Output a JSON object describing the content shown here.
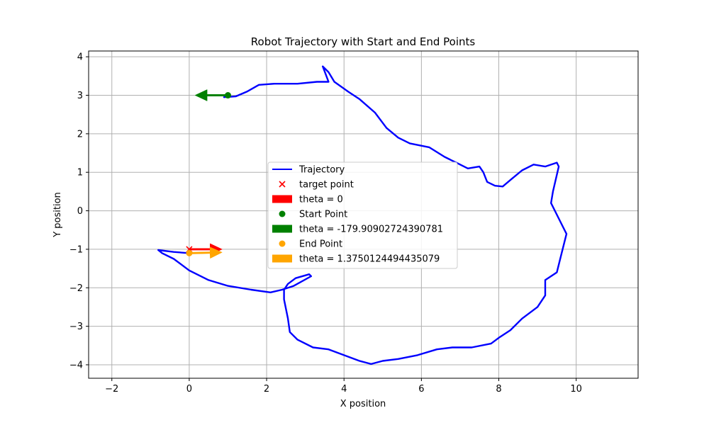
{
  "chart_data": {
    "type": "line",
    "title": "Robot Trajectory with Start and End Points",
    "xlabel": "X position",
    "ylabel": "Y position",
    "xlim": [
      -2.6,
      11.6
    ],
    "ylim": [
      -4.35,
      4.15
    ],
    "xticks": [
      -2,
      0,
      2,
      4,
      6,
      8,
      10
    ],
    "yticks": [
      -4,
      -3,
      -2,
      -1,
      0,
      1,
      2,
      3,
      4
    ],
    "xtick_labels": [
      "−2",
      "0",
      "2",
      "4",
      "6",
      "8",
      "10"
    ],
    "ytick_labels": [
      "−4",
      "−3",
      "−2",
      "−1",
      "0",
      "1",
      "2",
      "3",
      "4"
    ],
    "grid": true,
    "legend_position": "center",
    "colors": {
      "trajectory": "#0000ff",
      "target": "#ff0000",
      "target_arrow": "#ff0000",
      "start": "#008000",
      "start_arrow": "#008000",
      "end": "#ffa500",
      "end_arrow": "#ffa500",
      "grid": "#b0b0b0"
    },
    "series": [
      {
        "name": "Trajectory",
        "kind": "line",
        "x": [
          1.0,
          0.9,
          1.2,
          1.5,
          1.8,
          2.2,
          2.8,
          3.3,
          3.6,
          3.45,
          3.6,
          3.75,
          4.1,
          4.4,
          4.8,
          5.1,
          5.4,
          5.7,
          6.2,
          6.6,
          6.9,
          7.2,
          7.5,
          7.6,
          7.7,
          7.9,
          8.1,
          8.3,
          8.6,
          8.9,
          9.2,
          9.5,
          9.55,
          9.4,
          9.35,
          9.6,
          9.75,
          9.6,
          9.5,
          9.2,
          9.2,
          9.0,
          8.6,
          8.3,
          8.0,
          7.8,
          7.3,
          6.8,
          6.4,
          5.9,
          5.4,
          5.0,
          4.7,
          4.4,
          4.0,
          3.6,
          3.2,
          2.8,
          2.6,
          2.55,
          2.45,
          2.45,
          2.55,
          2.75,
          3.1,
          3.15,
          2.7,
          2.4,
          2.1,
          1.6,
          1.0,
          0.5,
          0.0,
          -0.4,
          -0.7,
          -0.8,
          -0.4,
          0.0
        ],
        "y": [
          3.0,
          2.95,
          2.97,
          3.1,
          3.27,
          3.3,
          3.3,
          3.35,
          3.35,
          3.75,
          3.6,
          3.35,
          3.1,
          2.9,
          2.55,
          2.15,
          1.9,
          1.75,
          1.65,
          1.4,
          1.25,
          1.1,
          1.15,
          1.0,
          0.75,
          0.65,
          0.63,
          0.8,
          1.05,
          1.2,
          1.15,
          1.25,
          1.15,
          0.5,
          0.2,
          -0.3,
          -0.6,
          -1.2,
          -1.6,
          -1.8,
          -2.2,
          -2.5,
          -2.8,
          -3.1,
          -3.3,
          -3.45,
          -3.55,
          -3.55,
          -3.6,
          -3.75,
          -3.85,
          -3.9,
          -3.98,
          -3.9,
          -3.75,
          -3.6,
          -3.55,
          -3.35,
          -3.15,
          -2.8,
          -2.3,
          -2.05,
          -1.9,
          -1.75,
          -1.65,
          -1.7,
          -1.95,
          -2.05,
          -2.12,
          -2.05,
          -1.95,
          -1.8,
          -1.55,
          -1.25,
          -1.1,
          -1.02,
          -1.07,
          -1.1
        ]
      },
      {
        "name": "target point",
        "kind": "scatter",
        "marker": "x",
        "x": [
          0.0
        ],
        "y": [
          -1.0
        ]
      },
      {
        "name": "theta = 0",
        "kind": "arrow",
        "x": [
          0.0
        ],
        "y": [
          -1.0
        ],
        "dx": [
          0.85
        ],
        "dy": [
          0.0
        ]
      },
      {
        "name": "Start Point",
        "kind": "scatter",
        "marker": "o",
        "x": [
          1.0
        ],
        "y": [
          3.0
        ]
      },
      {
        "name": "theta = -179.90902724390781",
        "kind": "arrow",
        "x": [
          1.0
        ],
        "y": [
          3.0
        ],
        "dx": [
          -0.85
        ],
        "dy": [
          0.0
        ]
      },
      {
        "name": "End Point",
        "kind": "scatter",
        "marker": "o",
        "x": [
          0.0
        ],
        "y": [
          -1.1
        ]
      },
      {
        "name": "theta = 1.3750124494435079",
        "kind": "arrow",
        "x": [
          0.0
        ],
        "y": [
          -1.1
        ],
        "dx": [
          0.85
        ],
        "dy": [
          0.02
        ]
      }
    ]
  }
}
